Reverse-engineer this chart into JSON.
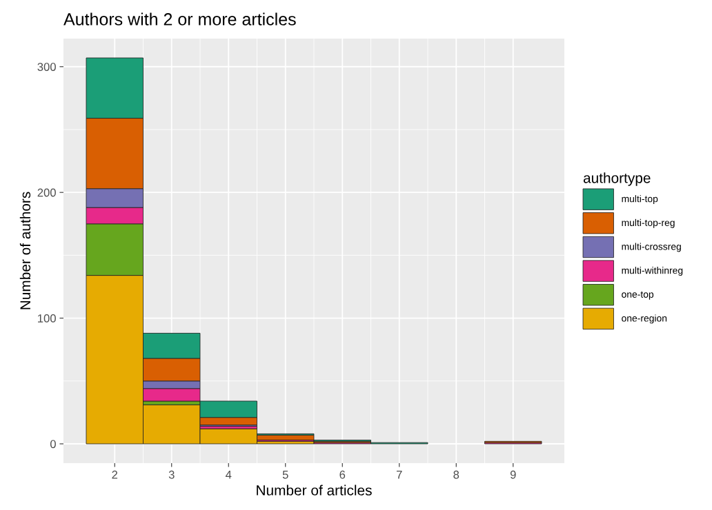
{
  "chart_data": {
    "type": "bar",
    "title": "Authors with 2 or more articles",
    "xlabel": "Number of articles",
    "ylabel": "Number of authors",
    "legend_title": "authortype",
    "x": [
      2,
      3,
      4,
      5,
      6,
      7,
      8,
      9
    ],
    "stacked": true,
    "series": [
      {
        "name": "one-region",
        "color": "#e6ab02",
        "values": [
          134,
          31,
          12,
          2,
          0,
          0,
          0,
          0
        ]
      },
      {
        "name": "one-top",
        "color": "#66a61e",
        "values": [
          41,
          3,
          0,
          0,
          0,
          0,
          0,
          0
        ]
      },
      {
        "name": "multi-withinreg",
        "color": "#e7298a",
        "values": [
          13,
          10,
          2,
          1,
          1,
          0,
          0,
          1
        ]
      },
      {
        "name": "multi-crossreg",
        "color": "#7570b3",
        "values": [
          15,
          6,
          1,
          0,
          0,
          0,
          0,
          0
        ]
      },
      {
        "name": "multi-top-reg",
        "color": "#d95f02",
        "values": [
          56,
          18,
          6,
          4,
          1,
          0,
          0,
          1
        ]
      },
      {
        "name": "multi-top",
        "color": "#1b9e77",
        "values": [
          48,
          20,
          13,
          1,
          1,
          1,
          0,
          0
        ]
      }
    ],
    "xlim": [
      1.1,
      9.9
    ],
    "xticks": [
      2,
      3,
      4,
      5,
      6,
      7,
      8,
      9
    ],
    "ylim": [
      -15.35,
      322.35
    ],
    "yticks": [
      0,
      100,
      200,
      300
    ],
    "grid": true,
    "legend": "right"
  }
}
